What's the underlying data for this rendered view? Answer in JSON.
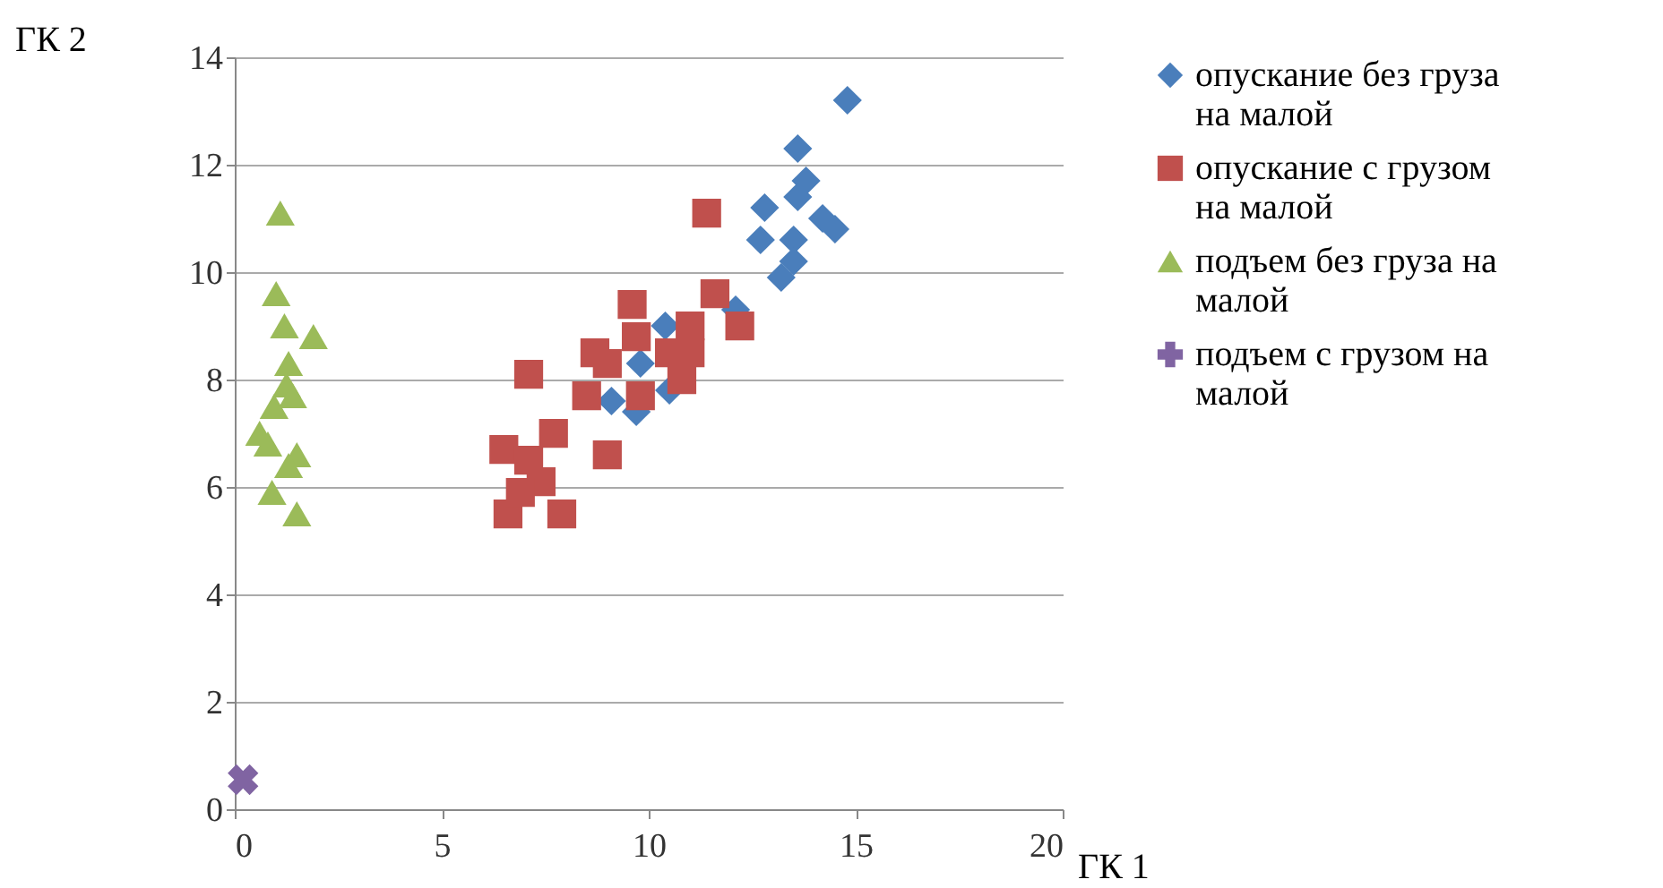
{
  "chart_data": {
    "type": "scatter",
    "xlabel": "ГК 1",
    "ylabel": "ГК 2",
    "xlim": [
      0,
      20
    ],
    "xticks": [
      0,
      5,
      10,
      15,
      20
    ],
    "ylim": [
      0,
      14
    ],
    "yticks": [
      0,
      2,
      4,
      6,
      8,
      10,
      12,
      14
    ],
    "grid": "y",
    "legend": "right",
    "series": [
      {
        "name": "опускание без груза на малой",
        "color": "#4a7ebb",
        "marker": "diamond",
        "x": [
          14.8,
          13.6,
          13.8,
          13.6,
          12.8,
          14.2,
          14.5,
          12.7,
          13.5,
          13.5,
          13.2,
          12.1,
          10.4,
          10.5,
          9.8,
          9.7,
          9.1
        ],
        "values": [
          13.2,
          12.3,
          11.7,
          11.4,
          11.2,
          11.0,
          10.8,
          10.6,
          10.6,
          10.2,
          9.9,
          9.3,
          9.0,
          7.8,
          8.3,
          7.4,
          7.6
        ]
      },
      {
        "name": "опускание с грузом на малой",
        "color": "#c0504d",
        "marker": "square",
        "x": [
          11.4,
          11.6,
          12.2,
          9.6,
          11.0,
          9.7,
          8.7,
          10.5,
          11.0,
          7.1,
          9.0,
          8.5,
          10.8,
          7.7,
          9.0,
          6.5,
          7.1,
          7.4,
          6.6,
          7.9,
          6.9,
          9.8
        ],
        "values": [
          11.1,
          9.6,
          9.0,
          9.4,
          9.0,
          8.8,
          8.5,
          8.5,
          8.5,
          8.1,
          8.3,
          7.7,
          8.0,
          7.0,
          6.6,
          6.7,
          6.5,
          6.1,
          5.5,
          5.5,
          5.9,
          7.7
        ]
      },
      {
        "name": "подъем без груза на малой",
        "color": "#9bbb59",
        "marker": "triangle",
        "x": [
          1.1,
          1.0,
          1.9,
          1.2,
          1.3,
          1.25,
          0.95,
          1.4,
          0.8,
          0.6,
          1.5,
          1.3,
          0.9,
          1.5
        ],
        "values": [
          11.1,
          9.6,
          8.8,
          9.0,
          8.3,
          7.9,
          7.5,
          7.7,
          6.8,
          7.0,
          6.6,
          6.4,
          5.9,
          5.5
        ]
      },
      {
        "name": "подъем с грузом на малой",
        "color": "#8064a2",
        "marker": "cross",
        "x": [
          0.2
        ],
        "values": [
          0.55
        ]
      }
    ]
  }
}
